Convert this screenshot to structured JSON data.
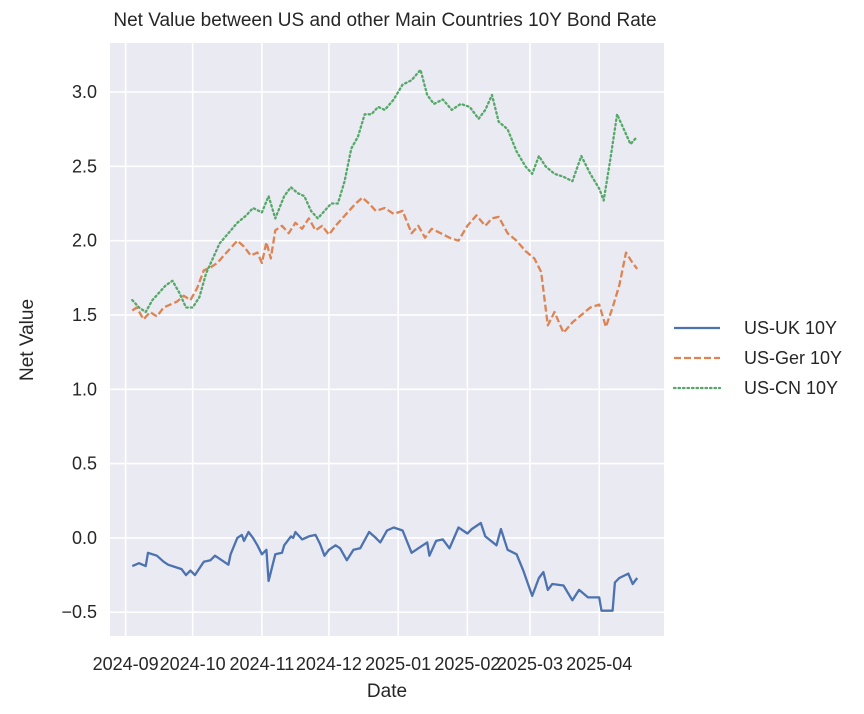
{
  "chart_data": {
    "type": "line",
    "title": "Net Value between US and other Main Countries 10Y Bond Rate",
    "xlabel": "Date",
    "ylabel": "Net Value",
    "ylim": [
      -0.66,
      3.33
    ],
    "xlim": [
      "2024-08-25",
      "2025-04-30"
    ],
    "grid": true,
    "legend_position": "right",
    "x_ticks": [
      "2024-09-01",
      "2024-10-01",
      "2024-11-01",
      "2024-12-01",
      "2025-01-01",
      "2025-02-01",
      "2025-03-01",
      "2025-04-01"
    ],
    "x_tick_labels": [
      "2024-09",
      "2024-10",
      "2024-11",
      "2024-12",
      "2025-01",
      "2025-02",
      "2025-03",
      "2025-04"
    ],
    "y_ticks": [
      -0.5,
      0.0,
      0.5,
      1.0,
      1.5,
      2.0,
      2.5,
      3.0
    ],
    "y_tick_labels": [
      "−0.5",
      "0.0",
      "0.5",
      "1.0",
      "1.5",
      "2.0",
      "2.5",
      "3.0"
    ],
    "series": [
      {
        "name": "US-UK 10Y",
        "color": "#4c72b0",
        "style": "solid",
        "dates": [
          "2024-09-04",
          "2024-09-07",
          "2024-09-10",
          "2024-09-11",
          "2024-09-15",
          "2024-09-18",
          "2024-09-20",
          "2024-09-24",
          "2024-09-26",
          "2024-09-28",
          "2024-09-30",
          "2024-10-02",
          "2024-10-06",
          "2024-10-09",
          "2024-10-11",
          "2024-10-14",
          "2024-10-17",
          "2024-10-18",
          "2024-10-21",
          "2024-10-23",
          "2024-10-24",
          "2024-10-26",
          "2024-10-28",
          "2024-10-30",
          "2024-11-01",
          "2024-11-03",
          "2024-11-04",
          "2024-11-07",
          "2024-11-10",
          "2024-11-11",
          "2024-11-14",
          "2024-11-15",
          "2024-11-16",
          "2024-11-19",
          "2024-11-22",
          "2024-11-25",
          "2024-11-27",
          "2024-11-29",
          "2024-12-01",
          "2024-12-04",
          "2024-12-06",
          "2024-12-09",
          "2024-12-12",
          "2024-12-15",
          "2024-12-19",
          "2024-12-22",
          "2024-12-24",
          "2024-12-27",
          "2024-12-30",
          "2025-01-03",
          "2025-01-07",
          "2025-01-10",
          "2025-01-14",
          "2025-01-15",
          "2025-01-18",
          "2025-01-21",
          "2025-01-24",
          "2025-01-28",
          "2025-02-01",
          "2025-02-03",
          "2025-02-07",
          "2025-02-09",
          "2025-02-14",
          "2025-02-16",
          "2025-02-19",
          "2025-02-23",
          "2025-02-26",
          "2025-03-02",
          "2025-03-05",
          "2025-03-07",
          "2025-03-09",
          "2025-03-11",
          "2025-03-16",
          "2025-03-20",
          "2025-03-23",
          "2025-03-27",
          "2025-04-01",
          "2025-04-02",
          "2025-04-07",
          "2025-04-08",
          "2025-04-10",
          "2025-04-14",
          "2025-04-16",
          "2025-04-18"
        ],
        "values": [
          -0.19,
          -0.17,
          -0.19,
          -0.1,
          -0.12,
          -0.16,
          -0.18,
          -0.2,
          -0.21,
          -0.25,
          -0.22,
          -0.25,
          -0.16,
          -0.15,
          -0.12,
          -0.15,
          -0.18,
          -0.11,
          -0.0,
          0.02,
          -0.02,
          0.04,
          0.0,
          -0.05,
          -0.11,
          -0.08,
          -0.29,
          -0.11,
          -0.1,
          -0.05,
          0.01,
          -0.0,
          0.04,
          -0.01,
          0.01,
          0.02,
          -0.04,
          -0.12,
          -0.08,
          -0.05,
          -0.07,
          -0.15,
          -0.08,
          -0.07,
          0.04,
          0.0,
          -0.03,
          0.05,
          0.07,
          0.05,
          -0.1,
          -0.07,
          -0.03,
          -0.12,
          -0.02,
          -0.01,
          -0.07,
          0.07,
          0.03,
          0.06,
          0.1,
          0.01,
          -0.05,
          0.06,
          -0.08,
          -0.11,
          -0.22,
          -0.39,
          -0.27,
          -0.23,
          -0.35,
          -0.31,
          -0.32,
          -0.42,
          -0.35,
          -0.4,
          -0.4,
          -0.49,
          -0.49,
          -0.3,
          -0.27,
          -0.24,
          -0.31,
          -0.27
        ]
      },
      {
        "name": "US-Ger 10Y",
        "color": "#dd8452",
        "style": "dashed",
        "dates": [
          "2024-09-04",
          "2024-09-06",
          "2024-09-09",
          "2024-09-12",
          "2024-09-15",
          "2024-09-18",
          "2024-09-21",
          "2024-09-24",
          "2024-09-27",
          "2024-09-30",
          "2024-10-03",
          "2024-10-06",
          "2024-10-09",
          "2024-10-12",
          "2024-10-15",
          "2024-10-18",
          "2024-10-21",
          "2024-10-24",
          "2024-10-27",
          "2024-10-30",
          "2024-11-01",
          "2024-11-03",
          "2024-11-05",
          "2024-11-07",
          "2024-11-10",
          "2024-11-13",
          "2024-11-16",
          "2024-11-19",
          "2024-11-22",
          "2024-11-25",
          "2024-11-28",
          "2024-12-01",
          "2024-12-04",
          "2024-12-07",
          "2024-12-10",
          "2024-12-13",
          "2024-12-16",
          "2024-12-19",
          "2024-12-22",
          "2024-12-26",
          "2024-12-30",
          "2025-01-03",
          "2025-01-07",
          "2025-01-10",
          "2025-01-13",
          "2025-01-16",
          "2025-01-20",
          "2025-01-24",
          "2025-01-28",
          "2025-02-01",
          "2025-02-05",
          "2025-02-09",
          "2025-02-12",
          "2025-02-15",
          "2025-02-19",
          "2025-02-23",
          "2025-02-27",
          "2025-03-03",
          "2025-03-06",
          "2025-03-09",
          "2025-03-12",
          "2025-03-16",
          "2025-03-20",
          "2025-03-24",
          "2025-03-28",
          "2025-04-01",
          "2025-04-04",
          "2025-04-07",
          "2025-04-10",
          "2025-04-13",
          "2025-04-16",
          "2025-04-18"
        ],
        "values": [
          1.53,
          1.55,
          1.47,
          1.52,
          1.49,
          1.55,
          1.57,
          1.59,
          1.63,
          1.6,
          1.68,
          1.8,
          1.82,
          1.85,
          1.9,
          1.95,
          2.0,
          1.96,
          1.9,
          1.92,
          1.85,
          1.99,
          1.88,
          2.07,
          2.1,
          2.05,
          2.12,
          2.08,
          2.15,
          2.07,
          2.1,
          2.04,
          2.1,
          2.15,
          2.2,
          2.25,
          2.29,
          2.25,
          2.2,
          2.22,
          2.18,
          2.2,
          2.05,
          2.1,
          2.02,
          2.08,
          2.05,
          2.02,
          2.0,
          2.1,
          2.17,
          2.1,
          2.15,
          2.16,
          2.05,
          2.0,
          1.93,
          1.88,
          1.79,
          1.43,
          1.52,
          1.38,
          1.45,
          1.5,
          1.55,
          1.57,
          1.42,
          1.55,
          1.7,
          1.92,
          1.85,
          1.81
        ]
      },
      {
        "name": "US-CN 10Y",
        "color": "#55a868",
        "style": "dotted",
        "dates": [
          "2024-09-04",
          "2024-09-07",
          "2024-09-10",
          "2024-09-13",
          "2024-09-16",
          "2024-09-19",
          "2024-09-22",
          "2024-09-25",
          "2024-09-28",
          "2024-10-01",
          "2024-10-04",
          "2024-10-07",
          "2024-10-10",
          "2024-10-13",
          "2024-10-17",
          "2024-10-21",
          "2024-10-25",
          "2024-10-28",
          "2024-11-01",
          "2024-11-04",
          "2024-11-07",
          "2024-11-11",
          "2024-11-14",
          "2024-11-17",
          "2024-11-20",
          "2024-11-23",
          "2024-11-26",
          "2024-11-29",
          "2024-12-02",
          "2024-12-05",
          "2024-12-08",
          "2024-12-11",
          "2024-12-14",
          "2024-12-17",
          "2024-12-20",
          "2024-12-23",
          "2024-12-26",
          "2024-12-30",
          "2025-01-03",
          "2025-01-07",
          "2025-01-11",
          "2025-01-14",
          "2025-01-17",
          "2025-01-21",
          "2025-01-25",
          "2025-01-29",
          "2025-02-02",
          "2025-02-06",
          "2025-02-09",
          "2025-02-12",
          "2025-02-15",
          "2025-02-19",
          "2025-02-23",
          "2025-02-27",
          "2025-03-02",
          "2025-03-05",
          "2025-03-08",
          "2025-03-12",
          "2025-03-16",
          "2025-03-20",
          "2025-03-24",
          "2025-03-28",
          "2025-04-01",
          "2025-04-03",
          "2025-04-06",
          "2025-04-09",
          "2025-04-12",
          "2025-04-15",
          "2025-04-18"
        ],
        "values": [
          1.6,
          1.55,
          1.52,
          1.6,
          1.65,
          1.7,
          1.73,
          1.65,
          1.55,
          1.55,
          1.62,
          1.78,
          1.88,
          1.98,
          2.05,
          2.12,
          2.17,
          2.22,
          2.19,
          2.3,
          2.15,
          2.3,
          2.36,
          2.32,
          2.3,
          2.2,
          2.15,
          2.2,
          2.25,
          2.25,
          2.4,
          2.62,
          2.7,
          2.85,
          2.85,
          2.9,
          2.88,
          2.95,
          3.05,
          3.08,
          3.15,
          2.98,
          2.92,
          2.95,
          2.88,
          2.92,
          2.9,
          2.82,
          2.88,
          2.98,
          2.8,
          2.75,
          2.6,
          2.5,
          2.45,
          2.57,
          2.5,
          2.45,
          2.43,
          2.4,
          2.57,
          2.45,
          2.35,
          2.27,
          2.55,
          2.85,
          2.75,
          2.65,
          2.7
        ]
      }
    ]
  }
}
